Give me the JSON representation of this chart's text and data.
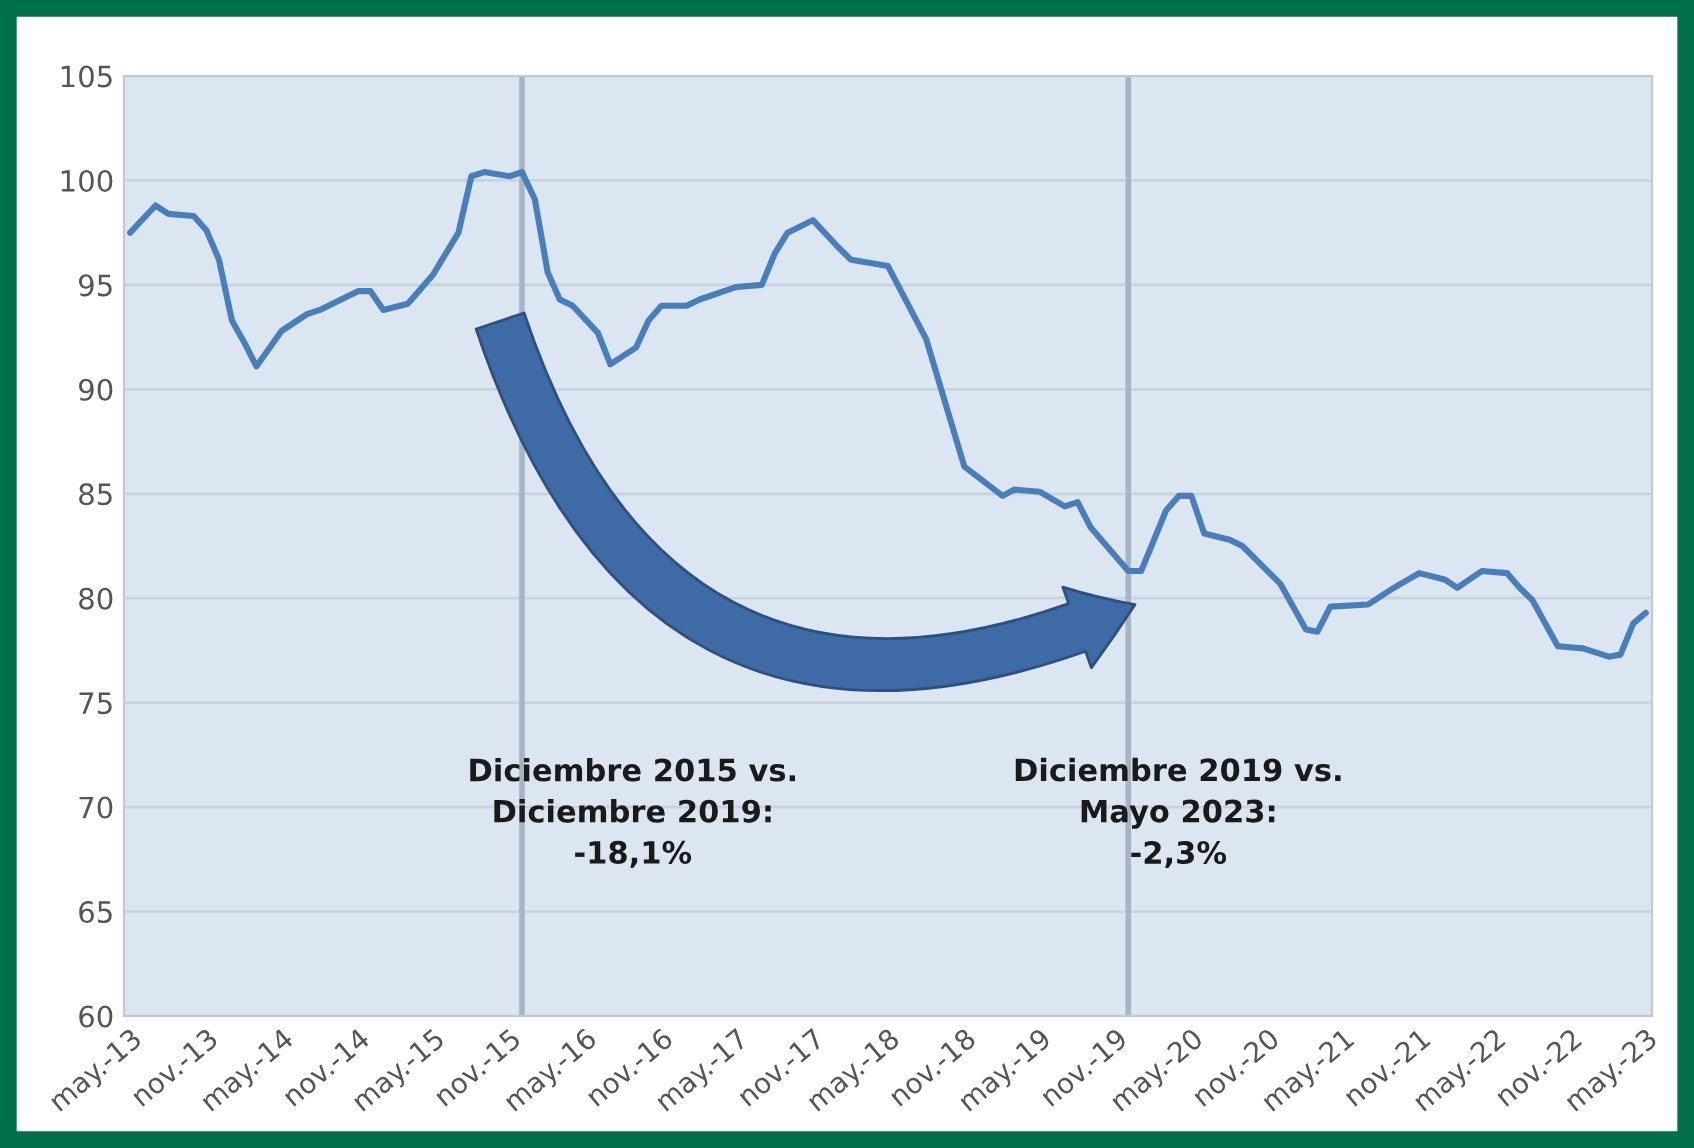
{
  "chart_data": {
    "type": "line",
    "x": [
      "2013-05",
      "2013-07",
      "2013-08",
      "2013-10",
      "2013-11",
      "2013-12",
      "2014-01",
      "2014-02",
      "2014-03",
      "2014-05",
      "2014-07",
      "2014-08",
      "2014-10",
      "2014-11",
      "2014-12",
      "2015-01",
      "2015-03",
      "2015-05",
      "2015-07",
      "2015-08",
      "2015-09",
      "2015-11",
      "2015-12",
      "2016-01",
      "2016-02",
      "2016-03",
      "2016-04",
      "2016-06",
      "2016-07",
      "2016-09",
      "2016-10",
      "2016-11",
      "2017-01",
      "2017-02",
      "2017-04",
      "2017-05",
      "2017-07",
      "2017-08",
      "2017-09",
      "2017-11",
      "2018-01",
      "2018-02",
      "2018-05",
      "2018-08",
      "2018-11",
      "2019-02",
      "2019-03",
      "2019-05",
      "2019-07",
      "2019-08",
      "2019-09",
      "2019-12",
      "2020-01",
      "2020-03",
      "2020-04",
      "2020-05",
      "2020-06",
      "2020-08",
      "2020-09",
      "2020-12",
      "2021-02",
      "2021-03",
      "2021-04",
      "2021-07",
      "2021-09",
      "2021-11",
      "2022-01",
      "2022-02",
      "2022-04",
      "2022-06",
      "2022-07",
      "2022-08",
      "2022-10",
      "2022-12",
      "2023-02",
      "2023-03",
      "2023-04",
      "2023-05"
    ],
    "series": [
      {
        "color": "#4a7ebb",
        "values": [
          97.5,
          98.8,
          98.4,
          98.3,
          97.6,
          96.2,
          93.3,
          92.2,
          91.1,
          92.8,
          93.6,
          93.8,
          94.4,
          94.7,
          94.7,
          93.8,
          94.1,
          95.5,
          97.5,
          100.2,
          100.4,
          100.2,
          100.4,
          99.1,
          95.6,
          94.3,
          94.0,
          92.7,
          91.2,
          92.0,
          93.3,
          94.0,
          94.0,
          94.3,
          94.7,
          94.9,
          95.0,
          96.5,
          97.5,
          98.1,
          96.8,
          96.2,
          95.9,
          92.4,
          86.3,
          84.9,
          85.2,
          85.1,
          84.4,
          84.6,
          83.4,
          81.3,
          81.3,
          84.2,
          84.9,
          84.9,
          83.1,
          82.8,
          82.5,
          80.7,
          78.5,
          78.4,
          79.6,
          79.7,
          80.5,
          81.2,
          80.9,
          80.5,
          81.3,
          81.2,
          80.5,
          79.9,
          77.7,
          77.6,
          77.2,
          77.3,
          78.8,
          79.3
        ]
      }
    ],
    "ylim": [
      60,
      105
    ],
    "yticks": [
      60,
      65,
      70,
      75,
      80,
      85,
      90,
      95,
      100,
      105
    ],
    "xlim": [
      "2013-04-16",
      "2023-05-16"
    ],
    "xticks": [
      {
        "value": "2013-05",
        "label": "may.-13"
      },
      {
        "value": "2013-11",
        "label": "nov.-13"
      },
      {
        "value": "2014-05",
        "label": "may.-14"
      },
      {
        "value": "2014-11",
        "label": "nov.-14"
      },
      {
        "value": "2015-05",
        "label": "may.-15"
      },
      {
        "value": "2015-11",
        "label": "nov.-15"
      },
      {
        "value": "2016-05",
        "label": "may.-16"
      },
      {
        "value": "2016-11",
        "label": "nov.-16"
      },
      {
        "value": "2017-05",
        "label": "may.-17"
      },
      {
        "value": "2017-11",
        "label": "nov.-17"
      },
      {
        "value": "2018-05",
        "label": "may.-18"
      },
      {
        "value": "2018-11",
        "label": "nov.-18"
      },
      {
        "value": "2019-05",
        "label": "may.-19"
      },
      {
        "value": "2019-11",
        "label": "nov.-19"
      },
      {
        "value": "2020-05",
        "label": "may.-20"
      },
      {
        "value": "2020-11",
        "label": "nov.-20"
      },
      {
        "value": "2021-05",
        "label": "may.-21"
      },
      {
        "value": "2021-11",
        "label": "nov.-21"
      },
      {
        "value": "2022-05",
        "label": "may.-22"
      },
      {
        "value": "2022-11",
        "label": "nov.-22"
      },
      {
        "value": "2023-05",
        "label": "may.-23"
      }
    ],
    "ref_lines": [
      {
        "axis": "x",
        "value": "2015-12",
        "color": "#a6b4c4"
      },
      {
        "axis": "x",
        "value": "2019-12",
        "color": "#a6b4c4"
      }
    ],
    "annotations": [
      "Diciembre 2015 vs.\nDiciembre 2019:\n-18,1%",
      "Diciembre 2019 vs.\nMayo 2023:\n-2,3%"
    ],
    "grid": "y",
    "marker": "none",
    "line_style": "solid"
  }
}
